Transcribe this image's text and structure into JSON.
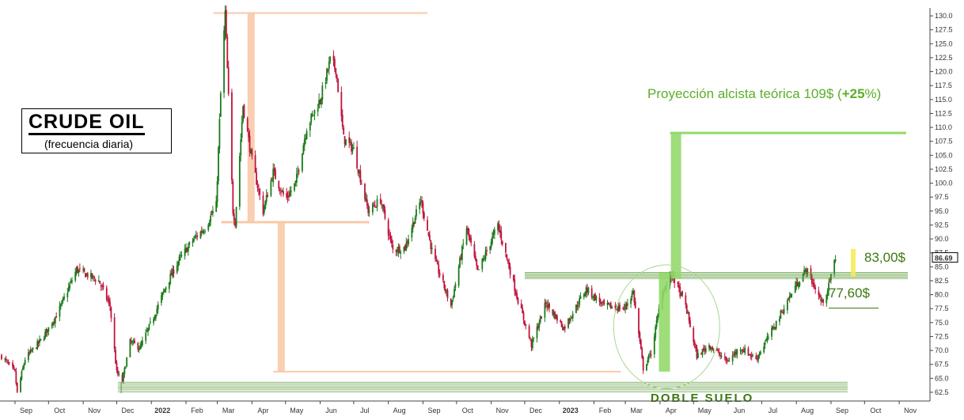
{
  "chart_data": {
    "type": "candlestick",
    "title": "CRUDE OIL",
    "subtitle": "(frecuencia diaria)",
    "y_ticks": [
      "62.5",
      "65.0",
      "67.5",
      "70.0",
      "72.5",
      "75.0",
      "77.5",
      "80.0",
      "82.5",
      "85.0",
      "87.5",
      "90.0",
      "92.5",
      "95.0",
      "97.5",
      "100.0",
      "102.5",
      "105.0",
      "107.5",
      "110.0",
      "112.5",
      "115.0",
      "117.5",
      "120.0",
      "122.5",
      "125.0",
      "127.5",
      "130.0"
    ],
    "ylim": [
      61.5,
      131
    ],
    "x_labels": [
      "Sep",
      "Oct",
      "Nov",
      "Dec",
      "2022",
      "Feb",
      "Mar",
      "Apr",
      "May",
      "Jun",
      "Jul",
      "Aug",
      "Sep",
      "Oct",
      "Nov",
      "Dec",
      "2023",
      "Feb",
      "Mar",
      "Apr",
      "May",
      "Jun",
      "Jul",
      "Aug",
      "Sep",
      "Oct",
      "Nov"
    ],
    "x_range_months": [
      "2021-09-01",
      "2023-11-30"
    ],
    "last_price_label": "86.69",
    "last_price": 86.69,
    "price_path": [
      [
        "2021-08-20",
        69.0
      ],
      [
        "2021-09-01",
        66.0
      ],
      [
        "2021-09-03",
        62.3
      ],
      [
        "2021-09-10",
        68.5
      ],
      [
        "2021-09-25",
        72.0
      ],
      [
        "2021-10-10",
        77.0
      ],
      [
        "2021-10-26",
        84.5
      ],
      [
        "2021-11-05",
        83.5
      ],
      [
        "2021-11-15",
        82.5
      ],
      [
        "2021-11-25",
        78.0
      ],
      [
        "2021-12-01",
        66.0
      ],
      [
        "2021-12-06",
        64.5
      ],
      [
        "2021-12-13",
        71.5
      ],
      [
        "2021-12-22",
        70.5
      ],
      [
        "2022-01-03",
        76.0
      ],
      [
        "2022-01-15",
        82.0
      ],
      [
        "2022-01-25",
        86.0
      ],
      [
        "2022-02-08",
        90.0
      ],
      [
        "2022-02-18",
        92.0
      ],
      [
        "2022-02-28",
        96.0
      ],
      [
        "2022-03-04",
        116.0
      ],
      [
        "2022-03-08",
        130.5
      ],
      [
        "2022-03-15",
        95.0
      ],
      [
        "2022-03-17",
        93.0
      ],
      [
        "2022-03-24",
        114.0
      ],
      [
        "2022-04-01",
        104.0
      ],
      [
        "2022-04-11",
        95.0
      ],
      [
        "2022-04-20",
        102.0
      ],
      [
        "2022-05-01",
        97.0
      ],
      [
        "2022-05-10",
        100.0
      ],
      [
        "2022-05-20",
        110.0
      ],
      [
        "2022-06-01",
        115.0
      ],
      [
        "2022-06-10",
        122.0
      ],
      [
        "2022-06-15",
        120.5
      ],
      [
        "2022-06-22",
        108.0
      ],
      [
        "2022-07-01",
        106.0
      ],
      [
        "2022-07-14",
        95.0
      ],
      [
        "2022-07-25",
        97.0
      ],
      [
        "2022-08-05",
        88.0
      ],
      [
        "2022-08-16",
        88.5
      ],
      [
        "2022-08-30",
        97.0
      ],
      [
        "2022-09-10",
        87.0
      ],
      [
        "2022-09-26",
        78.0
      ],
      [
        "2022-10-10",
        92.0
      ],
      [
        "2022-10-20",
        84.0
      ],
      [
        "2022-11-07",
        92.5
      ],
      [
        "2022-11-25",
        79.0
      ],
      [
        "2022-12-07",
        71.0
      ],
      [
        "2022-12-20",
        78.5
      ],
      [
        "2023-01-05",
        74.0
      ],
      [
        "2023-01-25",
        81.0
      ],
      [
        "2023-02-10",
        78.0
      ],
      [
        "2023-02-28",
        77.5
      ],
      [
        "2023-03-08",
        80.5
      ],
      [
        "2023-03-17",
        66.8
      ],
      [
        "2023-03-24",
        69.5
      ],
      [
        "2023-04-03",
        80.5
      ],
      [
        "2023-04-12",
        83.5
      ],
      [
        "2023-04-24",
        78.0
      ],
      [
        "2023-05-04",
        69.0
      ],
      [
        "2023-05-15",
        71.0
      ],
      [
        "2023-05-31",
        68.0
      ],
      [
        "2023-06-12",
        70.5
      ],
      [
        "2023-06-26",
        68.5
      ],
      [
        "2023-07-10",
        73.5
      ],
      [
        "2023-07-31",
        81.5
      ],
      [
        "2023-08-10",
        84.5
      ],
      [
        "2023-08-24",
        78.5
      ],
      [
        "2023-08-30",
        81.5
      ],
      [
        "2023-09-05",
        86.7
      ]
    ],
    "annotations": {
      "projection_label": "Proyección alcista teórica 109$ (",
      "projection_bold": "+25",
      "projection_tail": "%)",
      "resistance_label": "83,00$",
      "support_label": "77,60$",
      "double_bottom_label": "DOBLE SUELO"
    },
    "levels": {
      "projection_target": 109,
      "resistance_band": [
        82.9,
        84.0
      ],
      "support_mini": 77.6,
      "double_bottom_band": [
        62.6,
        64.3
      ],
      "march_2022_top": 130.5,
      "march_2022_low": 93.0,
      "april_projection_low": 66.2
    },
    "colors": {
      "up_candle": "#1a7a1a",
      "down_candle": "#c0143c",
      "projection": "#93d96a",
      "measure": "#f8c9a8",
      "resistance_lines": "#5a9a3a",
      "last_highlight": "#f4ec5a"
    },
    "grid": false
  }
}
